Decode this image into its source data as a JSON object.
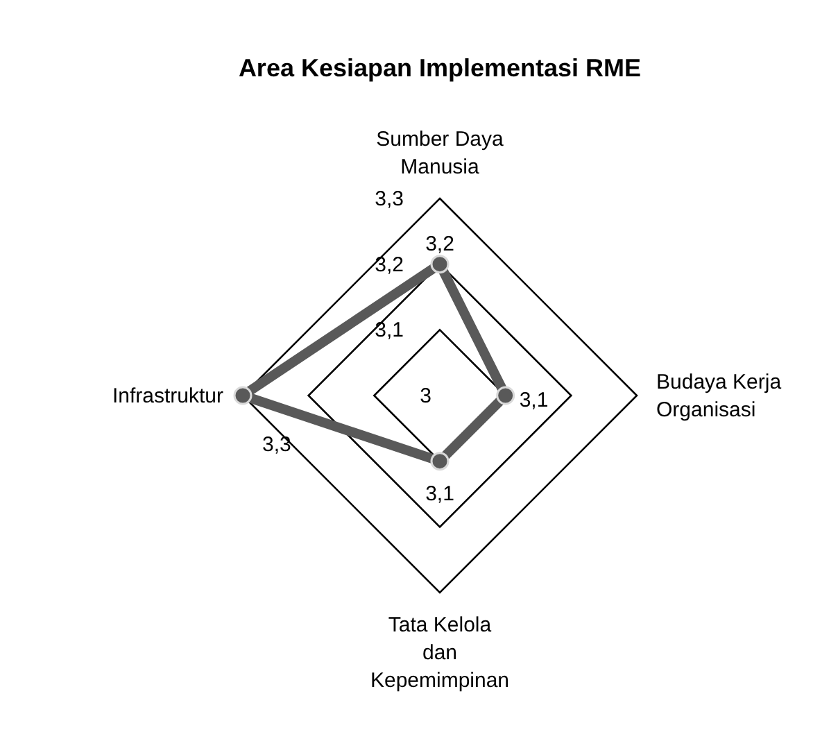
{
  "chart_data": {
    "type": "radar",
    "title": "Area Kesiapan Implementasi RME",
    "categories": [
      "Sumber Daya Manusia",
      "Budaya Kerja Organisasi",
      "Tata Kelola dan Kepemimpinan",
      "Infrastruktur"
    ],
    "series": [
      {
        "color": "#595959",
        "values": [
          3.2,
          3.1,
          3.1,
          3.3
        ],
        "value_labels": [
          "3,2",
          "3,1",
          "3,1",
          "3,3"
        ]
      }
    ],
    "ylim": [
      3,
      3.3
    ],
    "yticks": [
      3,
      {
        "value": 3.1,
        "label": "3,1"
      },
      {
        "value": 3.2,
        "label": "3,2"
      },
      {
        "value": 3.3,
        "label": "3,3"
      }
    ],
    "grid": true,
    "marker": "circle",
    "line_style": "solid"
  }
}
